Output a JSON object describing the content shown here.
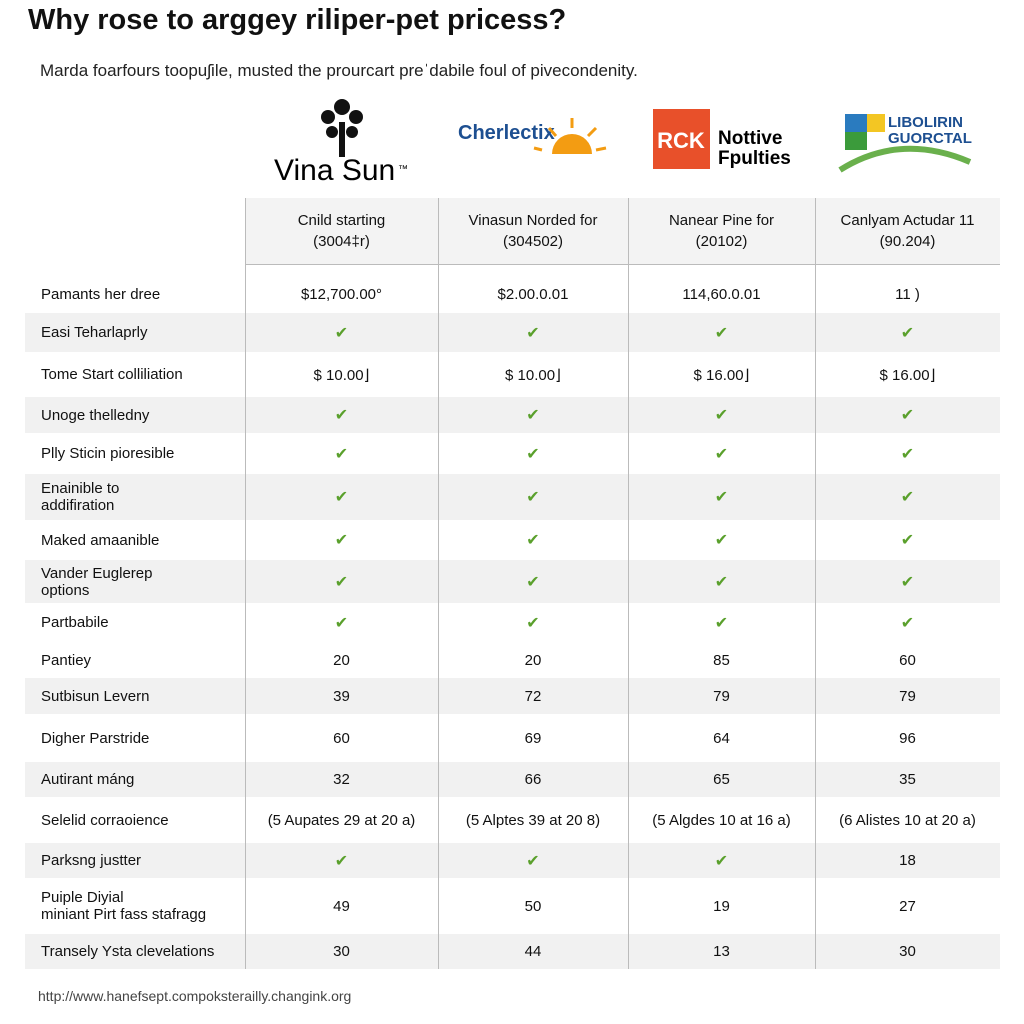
{
  "header": {
    "title": "Why rose to arggey riliper-pet pricess?",
    "subtitle": "Marda foarfours toopuʃile, musted the prourcart preˈdabile foul of pivecondenity."
  },
  "logos": [
    {
      "text": "Vina Sun",
      "mark": "™"
    },
    {
      "text": "Cherlectix"
    },
    {
      "text": "RCK",
      "text2": "Nottive\nFpulties"
    },
    {
      "text": "LIBOLIRIN\nGUORCTAL"
    }
  ],
  "table": {
    "columns": [
      "Cnild starting\n(3004‡r)",
      "Vinasun Norded for\n(304502)",
      "Nanear Pine for\n(20102)",
      "Canlyam Actudar 11\n(90.204)"
    ],
    "rows": [
      [
        "Pamants her dree",
        "$12,700.00°",
        "$2.00.0.01",
        "114,60.0.01",
        "11 )"
      ],
      [
        "Easi Teharlaprly",
        "✔",
        "✔",
        "✔",
        "✔"
      ],
      [
        "Tome Start colliliation",
        "$ 10.00⌋",
        "$ 10.00⌋",
        "$ 16.00⌋",
        "$ 16.00⌋"
      ],
      [
        "Unoge thelledny",
        "✔",
        "✔",
        "✔",
        "✔"
      ],
      [
        "Plly Sticin pioresible",
        "✔",
        "✔",
        "✔",
        "✔"
      ],
      [
        "Enainible to\naddifiration",
        "✔",
        "✔",
        "✔",
        "✔"
      ],
      [
        "Maked amaanible",
        "✔",
        "✔",
        "✔",
        "✔"
      ],
      [
        "Vander Euglerep\noptions",
        "✔",
        "✔",
        "✔",
        "✔"
      ],
      [
        "Partbabile",
        "✔",
        "✔",
        "✔",
        "✔"
      ],
      [
        "Pantiey",
        "20",
        "20",
        "85",
        "60"
      ],
      [
        "Sutbisun Levern",
        "39",
        "72",
        "79",
        "79"
      ],
      [
        "Digher Parstride",
        "60",
        "69",
        "64",
        "96"
      ],
      [
        "Autirant máng",
        "32",
        "66",
        "65",
        "35"
      ],
      [
        "Selelid corraoience",
        "(5 Aupates 29 at 20 a)",
        "(5 Alptes 39 at 20 8)",
        "(5 Algdes 10 at 16 a)",
        "(6 Alistes 10 at 20 a)"
      ],
      [
        "Parksng justter",
        "✔",
        "✔",
        "✔",
        "18"
      ],
      [
        "Puiple Diyial\nminiant Pirt fass stafragg",
        "49",
        "50",
        "19",
        "27"
      ],
      [
        "Transely Ysta clevelations",
        "30",
        "44",
        "13",
        "30"
      ]
    ]
  },
  "footer": {
    "url": "http://www.hanefsept.compoksterailly.changink.org"
  }
}
